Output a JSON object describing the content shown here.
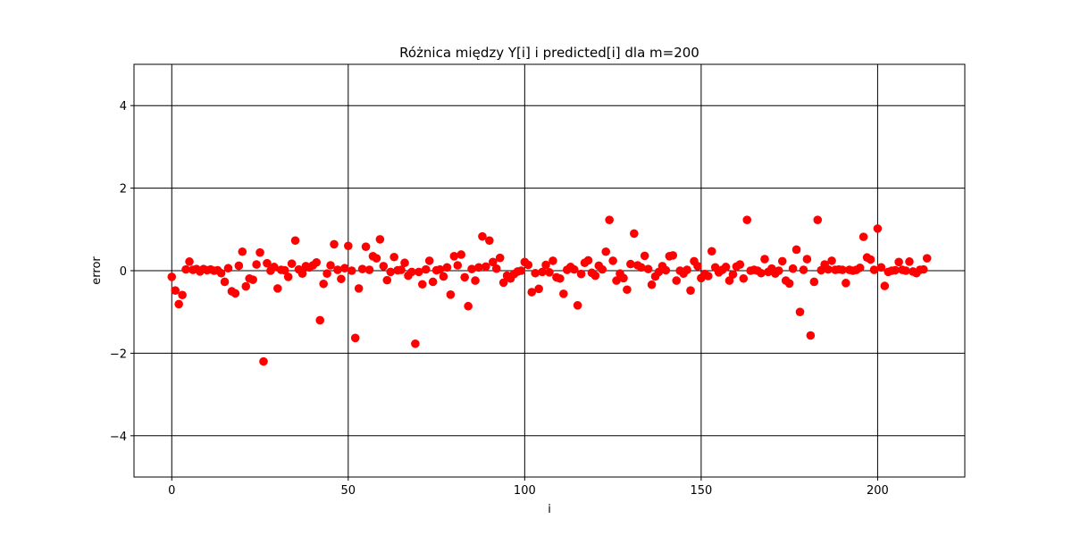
{
  "chart_data": {
    "type": "scatter",
    "title": "Różnica między Y[i] i predicted[i] dla m=200",
    "xlabel": "i",
    "ylabel": "error",
    "xlim": [
      -10.7,
      224.7
    ],
    "ylim": [
      -5,
      5
    ],
    "xticks": [
      0,
      50,
      100,
      150,
      200
    ],
    "yticks": [
      -4,
      -2,
      0,
      2,
      4
    ],
    "grid": true,
    "marker_color": "#ff0000",
    "series": [
      {
        "x": [
          0,
          1,
          2,
          3,
          4,
          5,
          6,
          7,
          8,
          9,
          10,
          11,
          12,
          13,
          14,
          15,
          16,
          17,
          18,
          19,
          20,
          21,
          22,
          23,
          24,
          25,
          26,
          27,
          28,
          29,
          30,
          31,
          32,
          33,
          34,
          35,
          36,
          37,
          38,
          39,
          40,
          41,
          42,
          43,
          44,
          45,
          46,
          47,
          48,
          49,
          50,
          51,
          52,
          53,
          54,
          55,
          56,
          57,
          58,
          59,
          60,
          61,
          62,
          63,
          64,
          65,
          66,
          67,
          68,
          69,
          70,
          71,
          72,
          73,
          74,
          75,
          76,
          77,
          78,
          79,
          80,
          81,
          82,
          83,
          84,
          85,
          86,
          87,
          88,
          89,
          90,
          91,
          92,
          93,
          94,
          95,
          96,
          97,
          98,
          99,
          100,
          101,
          102,
          103,
          104,
          105,
          106,
          107,
          108,
          109,
          110,
          111,
          112,
          113,
          114,
          115,
          116,
          117,
          118,
          119,
          120,
          121,
          122,
          123,
          124,
          125,
          126,
          127,
          128,
          129,
          130,
          131,
          132,
          133,
          134,
          135,
          136,
          137,
          138,
          139,
          140,
          141,
          142,
          143,
          144,
          145,
          146,
          147,
          148,
          149,
          150,
          151,
          152,
          153,
          154,
          155,
          156,
          157,
          158,
          159,
          160,
          161,
          162,
          163,
          164,
          165,
          166,
          167,
          168,
          169,
          170,
          171,
          172,
          173,
          174,
          175,
          176,
          177,
          178,
          179,
          180,
          181,
          182,
          183,
          184,
          185,
          186,
          187,
          188,
          189,
          190,
          191,
          192,
          193,
          194,
          195,
          196,
          197,
          198,
          199,
          200,
          201,
          202,
          203,
          204,
          205,
          206,
          207,
          208,
          209,
          210,
          211,
          212,
          213,
          214
        ],
        "y": [
          -0.15,
          -0.48,
          -0.81,
          -0.59,
          0.03,
          0.22,
          0.02,
          0.04,
          -0.02,
          0.04,
          0.01,
          0.03,
          0.0,
          0.01,
          -0.06,
          -0.27,
          0.06,
          -0.5,
          -0.55,
          0.12,
          0.46,
          -0.38,
          -0.19,
          -0.22,
          0.15,
          0.44,
          -2.2,
          0.18,
          0.0,
          0.09,
          -0.43,
          0.02,
          0.01,
          -0.15,
          0.17,
          0.73,
          0.03,
          -0.07,
          0.11,
          0.08,
          0.13,
          0.2,
          -1.2,
          -0.32,
          -0.07,
          0.13,
          0.64,
          0.02,
          -0.2,
          0.06,
          0.6,
          0.0,
          -1.63,
          -0.43,
          0.04,
          0.58,
          0.02,
          0.35,
          0.3,
          0.76,
          0.11,
          -0.23,
          -0.03,
          0.33,
          0.01,
          0.02,
          0.19,
          -0.12,
          -0.03,
          -1.77,
          -0.03,
          -0.33,
          0.03,
          0.24,
          -0.27,
          0.01,
          0.03,
          -0.14,
          0.08,
          -0.58,
          0.35,
          0.13,
          0.39,
          -0.16,
          -0.86,
          0.04,
          -0.24,
          0.08,
          0.83,
          0.1,
          0.73,
          0.21,
          0.05,
          0.31,
          -0.29,
          -0.12,
          -0.19,
          -0.08,
          -0.02,
          0.0,
          0.21,
          0.14,
          -0.52,
          -0.06,
          -0.44,
          -0.03,
          0.14,
          -0.04,
          0.24,
          -0.16,
          -0.19,
          -0.56,
          0.02,
          0.09,
          0.03,
          -0.84,
          -0.08,
          0.19,
          0.25,
          -0.05,
          -0.12,
          0.12,
          0.03,
          0.46,
          1.23,
          0.24,
          -0.24,
          -0.07,
          -0.18,
          -0.46,
          0.16,
          0.9,
          0.13,
          0.08,
          0.36,
          0.04,
          -0.34,
          -0.14,
          -0.03,
          0.11,
          0.01,
          0.35,
          0.37,
          -0.24,
          0.0,
          -0.07,
          0.02,
          -0.48,
          0.23,
          0.11,
          -0.18,
          -0.08,
          -0.13,
          0.47,
          0.08,
          -0.04,
          0.02,
          0.09,
          -0.24,
          -0.09,
          0.1,
          0.15,
          -0.19,
          1.23,
          0.0,
          0.02,
          0.0,
          -0.06,
          0.28,
          -0.03,
          0.05,
          -0.07,
          0.0,
          0.23,
          -0.24,
          -0.31,
          0.05,
          0.51,
          -1.0,
          0.02,
          0.28,
          -1.57,
          -0.27,
          1.23,
          0.01,
          0.15,
          0.03,
          0.24,
          0.02,
          0.03,
          0.02,
          -0.3,
          0.02,
          0.0,
          0.02,
          0.07,
          0.82,
          0.32,
          0.27,
          0.02,
          1.02,
          0.08,
          -0.37,
          -0.03,
          0.0,
          0.01,
          0.21,
          0.02,
          0.0,
          0.22,
          -0.02,
          -0.06,
          0.02,
          0.03,
          0.3
        ]
      }
    ]
  }
}
